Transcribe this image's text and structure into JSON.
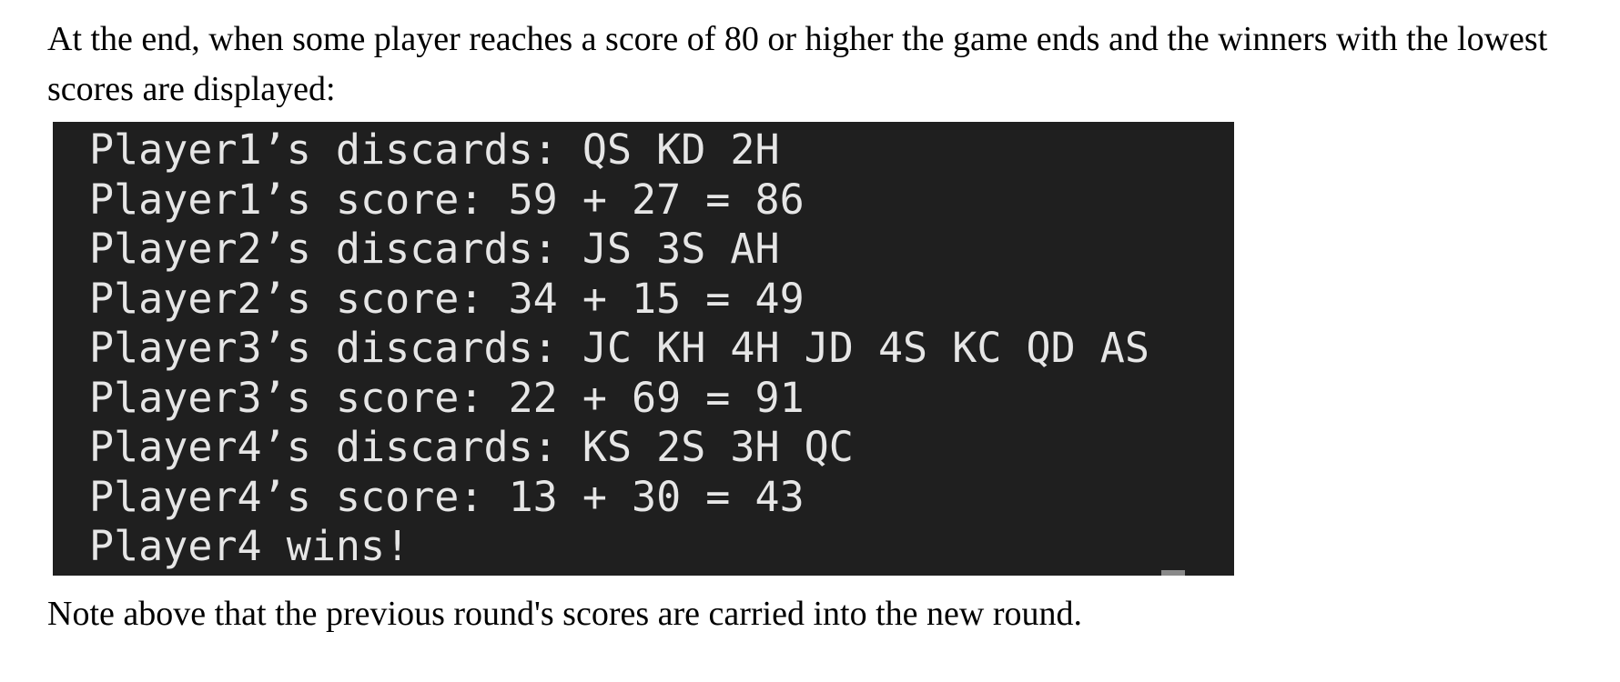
{
  "intro_text": "At the end, when some player reaches a score of 80 or higher the game ends and the winners with the lowest scores are displayed:",
  "terminal": {
    "lines": [
      "Player1’s discards: QS KD 2H",
      "Player1’s score: 59 + 27 = 86",
      "Player2’s discards: JS 3S AH",
      "Player2’s score: 34 + 15 = 49",
      "Player3’s discards: JC KH 4H JD 4S KC QD AS",
      "Player3’s score: 22 + 69 = 91",
      "Player4’s discards: KS 2S 3H QC",
      "Player4’s score: 13 + 30 = 43",
      "Player4 wins!"
    ],
    "background": "#1f1f1f",
    "text_color": "#e6e6e6"
  },
  "note_text": "Note above that the previous round's scores are carried into the new round."
}
